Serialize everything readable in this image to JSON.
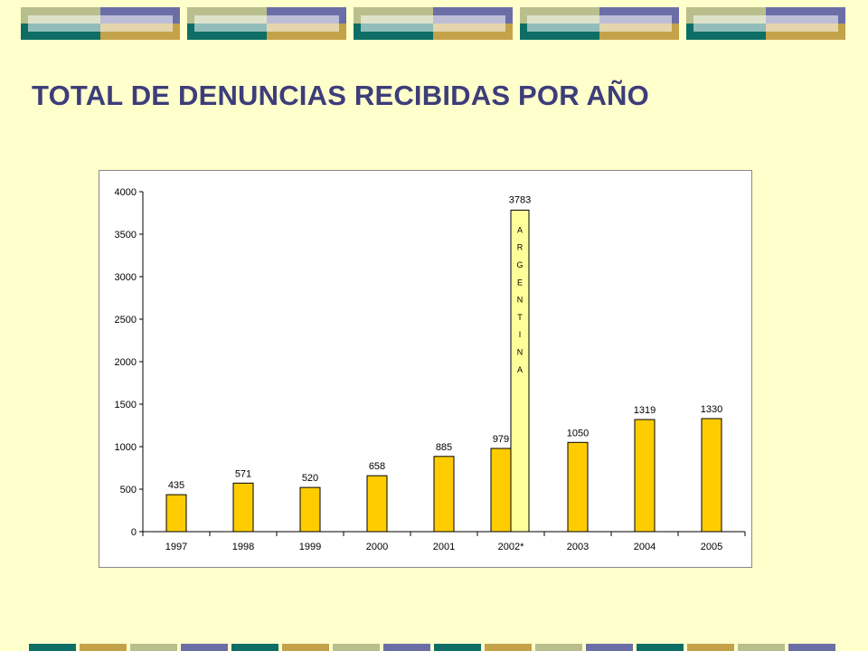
{
  "slide": {
    "title": "TOTAL DE DENUNCIAS RECIBIDAS POR AÑO",
    "colors": {
      "background": "#FFFFCC",
      "title": "#3D3D7A",
      "band_green": "#B8BE8C",
      "band_purple": "#6B6EA6",
      "band_teal": "#0E6E66",
      "band_gold": "#C4A24A"
    }
  },
  "chart_data": {
    "type": "bar",
    "title": "",
    "xlabel": "",
    "ylabel": "",
    "categories": [
      "1997",
      "1998",
      "1999",
      "2000",
      "2001",
      "2002*",
      "2003",
      "2004",
      "2005"
    ],
    "values": [
      435,
      571,
      520,
      658,
      885,
      979,
      1050,
      1319,
      1330
    ],
    "ylim": [
      0,
      4000
    ],
    "yticks": [
      0,
      500,
      1000,
      1500,
      2000,
      2500,
      3000,
      3500,
      4000
    ],
    "grid": false,
    "legend": "none",
    "bar_color": "#FFCC00",
    "extra_bar": {
      "category": "2002*",
      "value": 3783,
      "label_letters": [
        "A",
        "R",
        "G",
        "E",
        "N",
        "T",
        "I",
        "N",
        "A"
      ],
      "color": "#FFFF99"
    }
  }
}
